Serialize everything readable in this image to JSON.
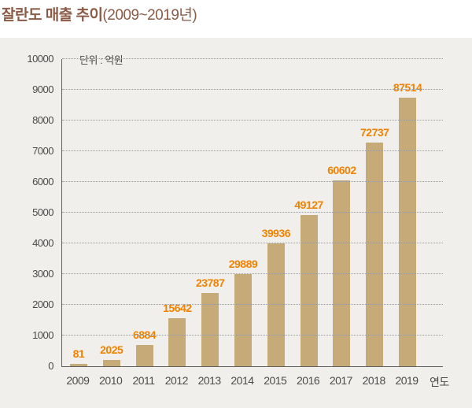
{
  "title": {
    "main": "잘란도 매출 추이",
    "range": "(2009~2019년)"
  },
  "chart_data": {
    "type": "bar",
    "title": "잘란도 매출 추이(2009~2019년)",
    "unit_label": "단위 : 억원",
    "xlabel": "연도",
    "ylabel": "",
    "categories": [
      "2009",
      "2010",
      "2011",
      "2012",
      "2013",
      "2014",
      "2015",
      "2016",
      "2017",
      "2018",
      "2019"
    ],
    "values": [
      81,
      2025,
      6884,
      15642,
      23787,
      29889,
      39936,
      49127,
      60602,
      72737,
      87514
    ],
    "y_ticks": [
      0,
      1000,
      2000,
      3000,
      4000,
      5000,
      6000,
      7000,
      8000,
      9000,
      10000
    ],
    "ylim": [
      0,
      10000
    ],
    "value_to_axis_divisor": 10,
    "grid": "dotted-horizontal",
    "legend": "none",
    "bar_color": "#c6aa78",
    "value_label_color": "#f18200",
    "title_color": "#8b5b47",
    "panel_background": "#f0efec",
    "axis_color": "#5f5f5f",
    "tick_text_color": "#4b4b4b"
  }
}
